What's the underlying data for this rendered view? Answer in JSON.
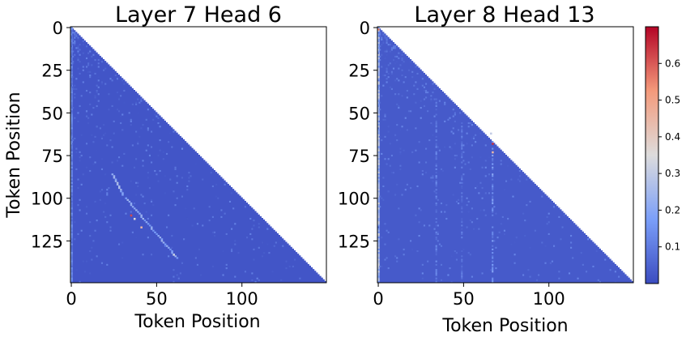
{
  "chart_data": [
    {
      "type": "heatmap",
      "title": "Layer 7 Head 6",
      "xlabel": "Token Position",
      "ylabel": "Token Position",
      "size": 150,
      "mask": "lower-triangular (causal attention)",
      "xticks": [
        0,
        50,
        100
      ],
      "yticks": [
        0,
        25,
        50,
        75,
        100,
        125
      ],
      "background_value": 0.02,
      "features": {
        "first_column_values": 0.12,
        "hotspots": [
          {
            "row": 110,
            "col": 35,
            "value": 0.62
          },
          {
            "row": 117,
            "col": 41,
            "value": 0.45
          },
          {
            "row": 112,
            "col": 37,
            "value": 0.35
          },
          {
            "row": 133,
            "col": 60,
            "value": 0.32
          }
        ],
        "diagonal_bands": [
          {
            "row_start": 86,
            "row_end": 98,
            "col_start": 24,
            "col_end": 30,
            "value": 0.18
          },
          {
            "row_start": 100,
            "row_end": 135,
            "col_start": 32,
            "col_end": 62,
            "value": 0.15
          }
        ]
      }
    },
    {
      "type": "heatmap",
      "title": "Layer 8 Head 13",
      "xlabel": "Token Position",
      "ylabel": "",
      "size": 150,
      "mask": "lower-triangular (causal attention)",
      "xticks": [
        0,
        50,
        100
      ],
      "yticks": [
        0,
        25,
        50,
        75,
        100,
        125
      ],
      "background_value": 0.03,
      "features": {
        "first_column_values": 0.25,
        "hotspots": [
          {
            "row": 68,
            "col": 67,
            "value": 0.65
          },
          {
            "row": 73,
            "col": 67,
            "value": 0.45
          },
          {
            "row": 62,
            "col": 66,
            "value": 0.3
          },
          {
            "row": 1,
            "col": 0,
            "value": 0.55
          }
        ],
        "vertical_stripes": [
          {
            "col": 67,
            "row_start": 66,
            "row_end": 150,
            "value": 0.14
          },
          {
            "col": 34,
            "row_start": 40,
            "row_end": 150,
            "value": 0.1
          },
          {
            "col": 49,
            "row_start": 55,
            "row_end": 150,
            "value": 0.08
          }
        ]
      }
    }
  ],
  "colorbar": {
    "colormap": "coolwarm",
    "min": 0.0,
    "max": 0.7,
    "ticks": [
      "0.1",
      "0.2",
      "0.3",
      "0.4",
      "0.5",
      "0.6"
    ]
  }
}
